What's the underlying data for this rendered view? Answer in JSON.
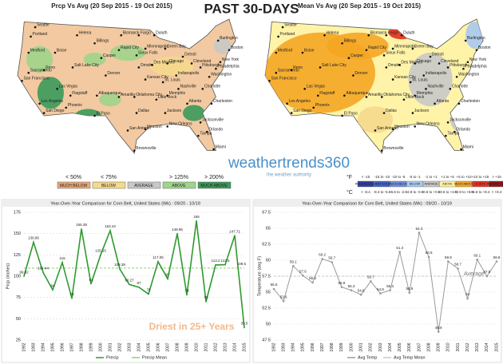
{
  "header": "PAST 30-DAYS",
  "logo": "weathertrends360",
  "logo_tagline": "the weather authority",
  "maps": [
    {
      "title": "Prcp Vs Avg (20 Sep 2015 - 19 Oct 2015)",
      "legend_ranges": [
        "< 50%",
        "< 75%",
        "",
        "> 125%",
        "> 200%"
      ],
      "legend_labels": [
        "MUCH BELOW",
        "BELOW",
        "AVERAGE",
        "ABOVE",
        "MUCH ABOVE"
      ],
      "legend_colors": [
        "#e8a878",
        "#f5d98c",
        "#c8c8c8",
        "#9fd48a",
        "#3a9a5a"
      ]
    },
    {
      "title": "Mean Vs Avg (20 Sep 2015 - 19 Oct 2015)",
      "unit_f": "°F",
      "unit_c": "°C",
      "legend_f": [
        "< -15",
        "-15 to -10",
        "-10 to -5",
        "-5 to -1",
        "-1 to +1",
        "+1 to +5",
        "+5 to +10",
        "+10 to +15",
        "> +15"
      ],
      "legend_c": [
        "< -8.4",
        "-8.4 to -5.6",
        "-5.6 to -2.8",
        "-2.8 to -0.6",
        "-0.6 to +0.6",
        "+0.6 to +2.8",
        "+2.8 to +5.6",
        "+5.6 to +8.4",
        "> +8.4"
      ],
      "legend_labels": [
        "RECORD COLD",
        "VERY COLD",
        "MUCH BELOW",
        "BELOW",
        "AVERAGE",
        "ABOVE",
        "MUCH ABOVE",
        "V. HOT",
        "RECORD HOT"
      ],
      "legend_colors": [
        "#3040a0",
        "#4060c8",
        "#6f8fe0",
        "#a8c8f0",
        "#c8c8c8",
        "#fff0a0",
        "#f5a623",
        "#e03020",
        "#901818"
      ]
    }
  ],
  "cities": [
    "Seattle",
    "Portland",
    "Medford",
    "Boise",
    "Helena",
    "Billings",
    "Bismarck",
    "Fargo",
    "Duluth",
    "Minneapolis",
    "Green Bay",
    "Sacramento",
    "Reno",
    "Salt Lake City",
    "Casper",
    "Rapid City",
    "Sioux Falls",
    "Omaha",
    "Des Moines",
    "Chicago",
    "Detroit",
    "Cleveland",
    "Pittsburgh",
    "Burlington",
    "Boston",
    "New York",
    "Philadelphia",
    "Washington",
    "San Francisco",
    "Las Vegas",
    "Denver",
    "Kansas City",
    "St. Louis",
    "Indianapolis",
    "Los Angeles",
    "San Diego",
    "Phoenix",
    "Flagstaff",
    "Albuquerque",
    "Amarillo",
    "Oklahoma City",
    "Little Rock",
    "Memphis",
    "Nashville",
    "Charlotte",
    "Atlanta",
    "Charleston",
    "El Paso",
    "Dallas",
    "Jackson",
    "San Antonio",
    "Houston",
    "New Orleans",
    "Jacksonville",
    "Tampa",
    "Orlando",
    "Miami",
    "Brownsville"
  ],
  "chart_data": [
    {
      "type": "line",
      "title": "Year-Over-Year Comparison for Corn Belt, United States (Wk) : 09/20 - 10/19",
      "y_label": "Prcp (inches)",
      "annotation": "Driest in 25+ Years",
      "categories": [
        "1992",
        "1993",
        "1994",
        "1995",
        "1996",
        "1997",
        "1998",
        "1999",
        "2000",
        "2001",
        "2002",
        "2003",
        "2004",
        "2005",
        "2006",
        "2007",
        "2008",
        "2009",
        "2010",
        "2011",
        "2012",
        "2013",
        "2014",
        "2015"
      ],
      "ylim": [
        25,
        175
      ],
      "yticks": [
        25,
        50,
        75,
        100,
        125,
        150,
        175
      ],
      "grid": true,
      "series": [
        {
          "name": "Precip",
          "color": "#2e9a2e",
          "values": [
            99.92,
            139.86,
            104.44,
            84,
            116,
            74,
            155.38,
            91,
            125.15,
            153.43,
            108.38,
            90.27,
            87,
            79,
            117.05,
            97,
            149.96,
            78,
            165,
            70,
            113.2,
            113.5,
            147.71,
            39.5
          ]
        },
        {
          "name": "Precip Mean",
          "color": "#8fcf6f",
          "value": 109.5
        }
      ]
    },
    {
      "type": "line",
      "title": "Year-Over-Year Comparison for Corn Belt, United States (Wk) : 09/20 - 10/19",
      "y_label": "Temperature (deg F)",
      "annotation": "Average",
      "categories": [
        "1992",
        "1993",
        "1994",
        "1995",
        "1996",
        "1997",
        "1998",
        "1999",
        "2000",
        "2001",
        "2002",
        "2003",
        "2004",
        "2005",
        "2006",
        "2007",
        "2008",
        "2009",
        "2010",
        "2011",
        "2012",
        "2013",
        "2014",
        "2015"
      ],
      "ylim": [
        47.5,
        67.5
      ],
      "yticks": [
        47.5,
        50,
        52.5,
        55,
        57.5,
        60,
        62.5,
        65,
        67.5
      ],
      "grid": true,
      "series": [
        {
          "name": "Avg Temp",
          "color": "#9a9a9a",
          "values": [
            55.5,
            53.6,
            59.1,
            57.6,
            56.5,
            60.2,
            59.7,
            55.8,
            55.3,
            54.6,
            56.7,
            54.8,
            55.3,
            61.3,
            54.9,
            64.3,
            60.5,
            48.8,
            59.8,
            58.7,
            54,
            60.1,
            57.5,
            59.8
          ]
        },
        {
          "name": "Avg Temp Mean",
          "color": "#c8c8c8",
          "value": 57.5
        }
      ]
    }
  ]
}
